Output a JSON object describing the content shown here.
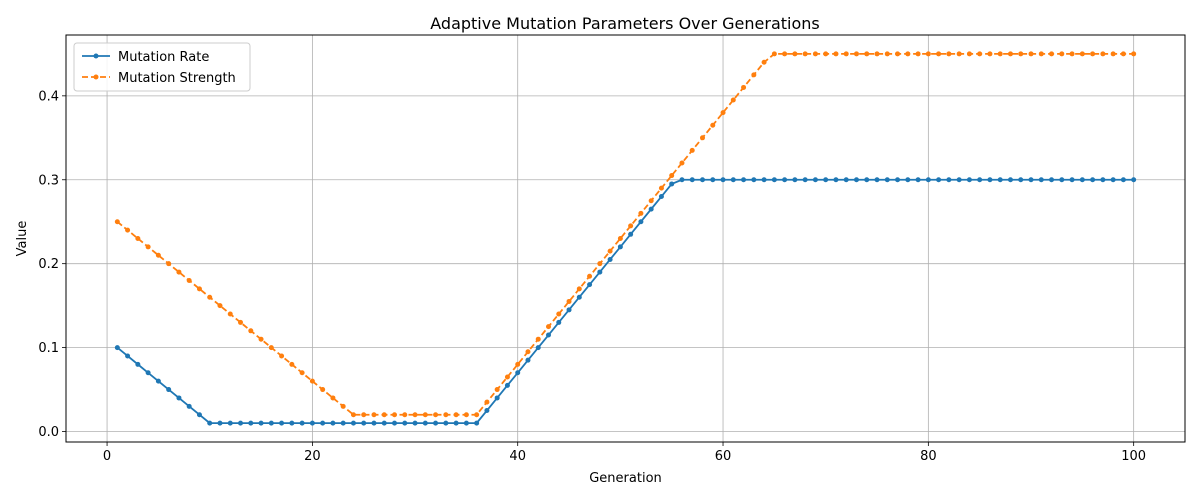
{
  "chart_data": {
    "type": "line",
    "title": "Adaptive Mutation Parameters Over Generations",
    "xlabel": "Generation",
    "ylabel": "Value",
    "xlim": [
      -4,
      105
    ],
    "ylim": [
      -0.0125,
      0.4725
    ],
    "xticks": [
      0,
      20,
      40,
      60,
      80,
      100
    ],
    "xtick_labels": [
      "0",
      "20",
      "40",
      "60",
      "80",
      "100"
    ],
    "yticks": [
      0.0,
      0.1,
      0.2,
      0.3,
      0.4
    ],
    "ytick_labels": [
      "0.0",
      "0.1",
      "0.2",
      "0.3",
      "0.4"
    ],
    "grid": true,
    "legend_position": "top-left",
    "series": [
      {
        "name": "Mutation Rate",
        "color": "#1f77b4",
        "linestyle": "solid",
        "marker": "circle",
        "x_start": 1,
        "values": [
          0.1,
          0.09,
          0.08,
          0.07,
          0.06,
          0.05,
          0.04,
          0.03,
          0.02,
          0.01,
          0.01,
          0.01,
          0.01,
          0.01,
          0.01,
          0.01,
          0.01,
          0.01,
          0.01,
          0.01,
          0.01,
          0.01,
          0.01,
          0.01,
          0.01,
          0.01,
          0.01,
          0.01,
          0.01,
          0.01,
          0.01,
          0.01,
          0.01,
          0.01,
          0.01,
          0.01,
          0.025,
          0.04,
          0.055,
          0.07,
          0.085,
          0.1,
          0.115,
          0.13,
          0.145,
          0.16,
          0.175,
          0.19,
          0.205,
          0.22,
          0.235,
          0.25,
          0.265,
          0.28,
          0.295,
          0.3,
          0.3,
          0.3,
          0.3,
          0.3,
          0.3,
          0.3,
          0.3,
          0.3,
          0.3,
          0.3,
          0.3,
          0.3,
          0.3,
          0.3,
          0.3,
          0.3,
          0.3,
          0.3,
          0.3,
          0.3,
          0.3,
          0.3,
          0.3,
          0.3,
          0.3,
          0.3,
          0.3,
          0.3,
          0.3,
          0.3,
          0.3,
          0.3,
          0.3,
          0.3,
          0.3,
          0.3,
          0.3,
          0.3,
          0.3,
          0.3,
          0.3,
          0.3,
          0.3,
          0.3
        ]
      },
      {
        "name": "Mutation Strength",
        "color": "#ff7f0e",
        "linestyle": "dashed",
        "marker": "circle",
        "x_start": 1,
        "values": [
          0.25,
          0.24,
          0.23,
          0.22,
          0.21,
          0.2,
          0.19,
          0.18,
          0.17,
          0.16,
          0.15,
          0.14,
          0.13,
          0.12,
          0.11,
          0.1,
          0.09,
          0.08,
          0.07,
          0.06,
          0.05,
          0.04,
          0.03,
          0.02,
          0.02,
          0.02,
          0.02,
          0.02,
          0.02,
          0.02,
          0.02,
          0.02,
          0.02,
          0.02,
          0.02,
          0.02,
          0.035,
          0.05,
          0.065,
          0.08,
          0.095,
          0.11,
          0.125,
          0.14,
          0.155,
          0.17,
          0.185,
          0.2,
          0.215,
          0.23,
          0.245,
          0.26,
          0.275,
          0.29,
          0.305,
          0.32,
          0.335,
          0.35,
          0.365,
          0.38,
          0.395,
          0.41,
          0.425,
          0.44,
          0.45,
          0.45,
          0.45,
          0.45,
          0.45,
          0.45,
          0.45,
          0.45,
          0.45,
          0.45,
          0.45,
          0.45,
          0.45,
          0.45,
          0.45,
          0.45,
          0.45,
          0.45,
          0.45,
          0.45,
          0.45,
          0.45,
          0.45,
          0.45,
          0.45,
          0.45,
          0.45,
          0.45,
          0.45,
          0.45,
          0.45,
          0.45,
          0.45,
          0.45,
          0.45,
          0.45
        ]
      }
    ]
  }
}
